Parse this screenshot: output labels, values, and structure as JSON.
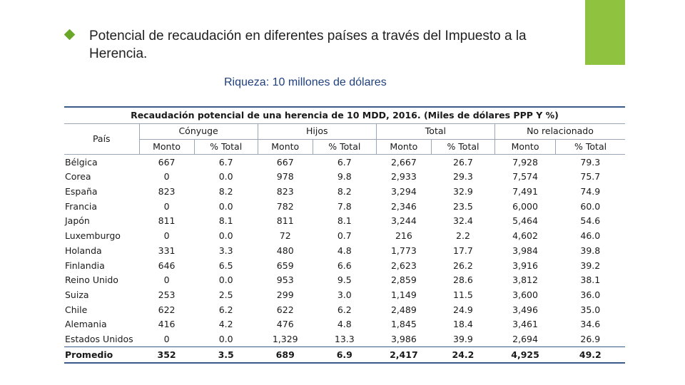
{
  "slide": {
    "heading": "Potencial de recaudación en diferentes países a través del Impuesto a la Herencia.",
    "subheading": "Riqueza: 10 millones de dólares",
    "accent_color": "#8fc23f",
    "bullet_icon": "diamond-bullet-icon"
  },
  "table": {
    "caption": "Recaudación  potencial de una herencia de 10 MDD, 2016. (Miles de dólares PPP Y %)",
    "row_header": "País",
    "groups": [
      "Cónyuge",
      "Hijos",
      "Total",
      "No relacionado"
    ],
    "subheaders": [
      "Monto",
      "% Total",
      "Monto",
      "% Total",
      "Monto",
      "% Total",
      "Monto",
      "% Total"
    ],
    "rows": [
      {
        "country": "Bélgica",
        "values": [
          "667",
          "6.7",
          "667",
          "6.7",
          "2,667",
          "26.7",
          "7,928",
          "79.3"
        ]
      },
      {
        "country": "Corea",
        "values": [
          "0",
          "0.0",
          "978",
          "9.8",
          "2,933",
          "29.3",
          "7,574",
          "75.7"
        ]
      },
      {
        "country": "España",
        "values": [
          "823",
          "8.2",
          "823",
          "8.2",
          "3,294",
          "32.9",
          "7,491",
          "74.9"
        ]
      },
      {
        "country": "Francia",
        "values": [
          "0",
          "0.0",
          "782",
          "7.8",
          "2,346",
          "23.5",
          "6,000",
          "60.0"
        ]
      },
      {
        "country": "Japón",
        "values": [
          "811",
          "8.1",
          "811",
          "8.1",
          "3,244",
          "32.4",
          "5,464",
          "54.6"
        ]
      },
      {
        "country": "Luxemburgo",
        "values": [
          "0",
          "0.0",
          "72",
          "0.7",
          "216",
          "2.2",
          "4,602",
          "46.0"
        ]
      },
      {
        "country": "Holanda",
        "values": [
          "331",
          "3.3",
          "480",
          "4.8",
          "1,773",
          "17.7",
          "3,984",
          "39.8"
        ]
      },
      {
        "country": "Finlandia",
        "values": [
          "646",
          "6.5",
          "659",
          "6.6",
          "2,623",
          "26.2",
          "3,916",
          "39.2"
        ]
      },
      {
        "country": "Reino Unido",
        "values": [
          "0",
          "0.0",
          "953",
          "9.5",
          "2,859",
          "28.6",
          "3,812",
          "38.1"
        ]
      },
      {
        "country": "Suiza",
        "values": [
          "253",
          "2.5",
          "299",
          "3.0",
          "1,149",
          "11.5",
          "3,600",
          "36.0"
        ]
      },
      {
        "country": "Chile",
        "values": [
          "622",
          "6.2",
          "622",
          "6.2",
          "2,489",
          "24.9",
          "3,496",
          "35.0"
        ]
      },
      {
        "country": "Alemania",
        "values": [
          "416",
          "4.2",
          "476",
          "4.8",
          "1,845",
          "18.4",
          "3,461",
          "34.6"
        ]
      },
      {
        "country": "Estados Unidos",
        "values": [
          "0",
          "0.0",
          "1,329",
          "13.3",
          "3,986",
          "39.9",
          "2,694",
          "26.9"
        ]
      }
    ],
    "total": {
      "country": "Promedio",
      "values": [
        "352",
        "3.5",
        "689",
        "6.9",
        "2,417",
        "24.2",
        "4,925",
        "49.2"
      ]
    }
  }
}
